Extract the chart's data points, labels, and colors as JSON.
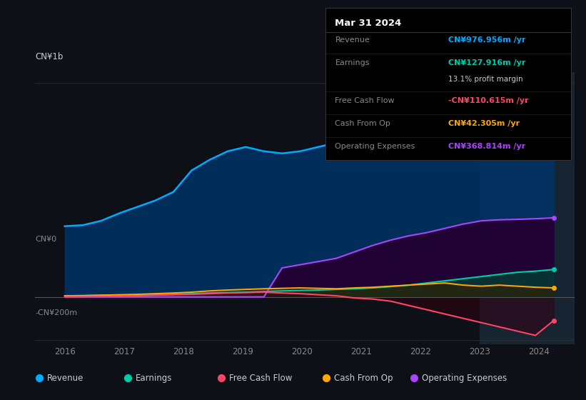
{
  "bg_color": "#0d1117",
  "plot_bg_color": "#0d1117",
  "line_colors": {
    "Revenue": "#00aaff",
    "Earnings": "#00ccaa",
    "FreeCashFlow": "#ff4466",
    "CashFromOp": "#ffaa00",
    "OperatingExpenses": "#aa44ff"
  },
  "fill_colors": {
    "Revenue": "#003366",
    "Earnings": "#004433",
    "FreeCashFlow": "#330011",
    "CashFromOp": "#332200",
    "OperatingExpenses": "#220033"
  },
  "revenue": [
    330,
    335,
    355,
    390,
    420,
    450,
    490,
    590,
    640,
    680,
    700,
    680,
    670,
    680,
    700,
    720,
    760,
    800,
    830,
    860,
    880,
    890,
    910,
    930,
    950,
    960,
    970,
    977
  ],
  "earnings": [
    5,
    6,
    7,
    8,
    9,
    10,
    12,
    15,
    18,
    20,
    22,
    25,
    28,
    30,
    32,
    35,
    38,
    42,
    48,
    55,
    65,
    75,
    85,
    95,
    105,
    115,
    120,
    128
  ],
  "free_cash_flow": [
    0,
    1,
    2,
    3,
    5,
    8,
    10,
    12,
    15,
    18,
    20,
    22,
    18,
    15,
    10,
    5,
    -5,
    -10,
    -20,
    -40,
    -60,
    -80,
    -100,
    -120,
    -140,
    -160,
    -180,
    -111
  ],
  "cash_from_op": [
    5,
    6,
    8,
    10,
    12,
    15,
    18,
    22,
    28,
    32,
    35,
    38,
    40,
    42,
    40,
    38,
    42,
    45,
    50,
    55,
    60,
    65,
    55,
    50,
    55,
    50,
    45,
    42
  ],
  "operating_expenses": [
    0,
    0,
    0,
    0,
    0,
    0,
    0,
    0,
    0,
    0,
    0,
    0,
    135,
    150,
    165,
    180,
    210,
    240,
    265,
    285,
    300,
    320,
    340,
    355,
    360,
    362,
    365,
    369
  ],
  "ylim": [
    -220,
    1050
  ],
  "xlim": [
    2015.5,
    2024.6
  ],
  "x_ticks": [
    2016,
    2017,
    2018,
    2019,
    2020,
    2021,
    2022,
    2023,
    2024
  ],
  "highlight_start": 2023.0,
  "highlight_end": 2024.6,
  "ylabel_top": "CN¥1b",
  "ylabel_zero": "CN¥0",
  "ylabel_neg": "-CN¥200m",
  "tooltip": {
    "date": "Mar 31 2024",
    "revenue_label": "Revenue",
    "revenue_val": "CN¥976.956m /yr",
    "earnings_label": "Earnings",
    "earnings_val": "CN¥127.916m /yr",
    "margin_val": "13.1% profit margin",
    "fcf_label": "Free Cash Flow",
    "fcf_val": "-CN¥110.615m /yr",
    "cfop_label": "Cash From Op",
    "cfop_val": "CN¥42.305m /yr",
    "opex_label": "Operating Expenses",
    "opex_val": "CN¥368.814m /yr"
  },
  "legend_items": [
    {
      "label": "Revenue",
      "color": "#00aaff"
    },
    {
      "label": "Earnings",
      "color": "#00ccaa"
    },
    {
      "label": "Free Cash Flow",
      "color": "#ff4466"
    },
    {
      "label": "Cash From Op",
      "color": "#ffaa00"
    },
    {
      "label": "Operating Expenses",
      "color": "#aa44ff"
    }
  ]
}
